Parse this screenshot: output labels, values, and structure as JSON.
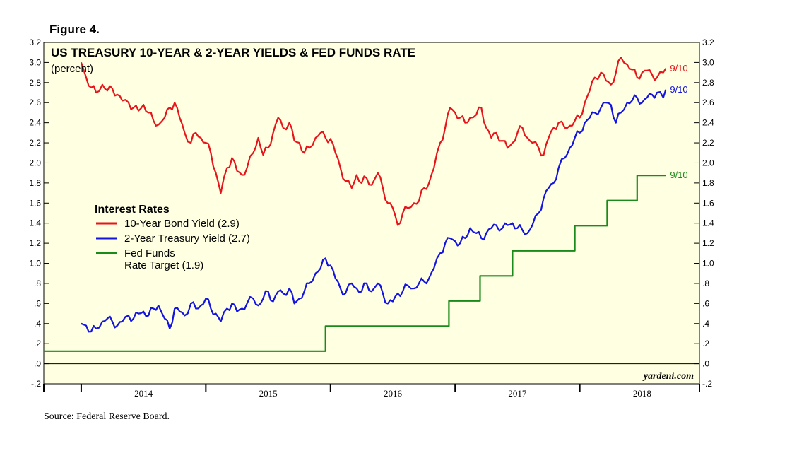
{
  "figure_label": "Figure 4.",
  "source": "Source: Federal Reserve Board.",
  "watermark": "yardeni.com",
  "chart_data": {
    "type": "line",
    "title": "US TREASURY 10-YEAR & 2-YEAR YIELDS & FED FUNDS RATE",
    "subtitle": "(percent)",
    "ylim": [
      -0.2,
      3.2
    ],
    "xlim": [
      2013.7,
      2018.96
    ],
    "y_ticks": [
      {
        "value": 3.2,
        "label": "3.2"
      },
      {
        "value": 3.0,
        "label": "3.0"
      },
      {
        "value": 2.8,
        "label": "2.8"
      },
      {
        "value": 2.6,
        "label": "2.6"
      },
      {
        "value": 2.4,
        "label": "2.4"
      },
      {
        "value": 2.2,
        "label": "2.2"
      },
      {
        "value": 2.0,
        "label": "2.0"
      },
      {
        "value": 1.8,
        "label": "1.8"
      },
      {
        "value": 1.6,
        "label": "1.6"
      },
      {
        "value": 1.4,
        "label": "1.4"
      },
      {
        "value": 1.2,
        "label": "1.2"
      },
      {
        "value": 1.0,
        "label": "1.0"
      },
      {
        "value": 0.8,
        "label": ".8"
      },
      {
        "value": 0.6,
        "label": ".6"
      },
      {
        "value": 0.4,
        "label": ".4"
      },
      {
        "value": 0.2,
        "label": ".2"
      },
      {
        "value": 0.0,
        "label": ".0"
      },
      {
        "value": -0.2,
        "label": "-.2"
      }
    ],
    "x_ticks": [
      2014.0,
      2015.0,
      2016.0,
      2017.0,
      2018.0
    ],
    "x_tick_labels": [
      {
        "value": 2014.5,
        "label": "2014"
      },
      {
        "value": 2015.5,
        "label": "2015"
      },
      {
        "value": 2016.5,
        "label": "2016"
      },
      {
        "value": 2017.5,
        "label": "2017"
      },
      {
        "value": 2018.5,
        "label": "2018"
      }
    ],
    "legend": {
      "heading": "Interest Rates",
      "entries": [
        "10-Year Bond Yield (2.9)",
        "2-Year Treasury Yield (2.7)",
        "Fed Funds",
        "Rate Target (1.9)"
      ]
    },
    "series": [
      {
        "name": "10-Year Bond Yield",
        "color": "#e8141b",
        "end_label": "9/10",
        "x": [
          2014.0,
          2014.04,
          2014.08,
          2014.12,
          2014.17,
          2014.21,
          2014.25,
          2014.29,
          2014.33,
          2014.38,
          2014.42,
          2014.46,
          2014.5,
          2014.54,
          2014.58,
          2014.62,
          2014.67,
          2014.71,
          2014.75,
          2014.79,
          2014.83,
          2014.88,
          2014.92,
          2014.96,
          2015.0,
          2015.04,
          2015.08,
          2015.12,
          2015.17,
          2015.21,
          2015.25,
          2015.29,
          2015.33,
          2015.38,
          2015.42,
          2015.46,
          2015.5,
          2015.54,
          2015.58,
          2015.62,
          2015.67,
          2015.71,
          2015.75,
          2015.79,
          2015.83,
          2015.88,
          2015.92,
          2015.96,
          2016.0,
          2016.04,
          2016.08,
          2016.12,
          2016.17,
          2016.21,
          2016.25,
          2016.29,
          2016.33,
          2016.38,
          2016.42,
          2016.46,
          2016.5,
          2016.54,
          2016.58,
          2016.62,
          2016.67,
          2016.71,
          2016.75,
          2016.79,
          2016.83,
          2016.88,
          2016.92,
          2016.96,
          2017.0,
          2017.04,
          2017.08,
          2017.12,
          2017.17,
          2017.21,
          2017.25,
          2017.29,
          2017.33,
          2017.38,
          2017.42,
          2017.46,
          2017.5,
          2017.54,
          2017.58,
          2017.62,
          2017.67,
          2017.71,
          2017.75,
          2017.79,
          2017.83,
          2017.88,
          2017.92,
          2017.96,
          2018.0,
          2018.04,
          2018.08,
          2018.12,
          2018.17,
          2018.21,
          2018.25,
          2018.29,
          2018.33,
          2018.38,
          2018.42,
          2018.46,
          2018.5,
          2018.54,
          2018.58,
          2018.62,
          2018.67,
          2018.69
        ],
        "values": [
          3.0,
          2.85,
          2.75,
          2.7,
          2.78,
          2.72,
          2.74,
          2.68,
          2.62,
          2.6,
          2.55,
          2.52,
          2.58,
          2.5,
          2.42,
          2.38,
          2.45,
          2.55,
          2.6,
          2.45,
          2.3,
          2.2,
          2.3,
          2.25,
          2.2,
          2.1,
          1.9,
          1.7,
          1.95,
          2.05,
          1.92,
          1.88,
          1.95,
          2.1,
          2.25,
          2.08,
          2.15,
          2.3,
          2.45,
          2.35,
          2.4,
          2.22,
          2.2,
          2.1,
          2.15,
          2.25,
          2.3,
          2.25,
          2.24,
          2.1,
          1.95,
          1.82,
          1.75,
          1.88,
          1.8,
          1.85,
          1.78,
          1.9,
          1.75,
          1.6,
          1.55,
          1.38,
          1.5,
          1.55,
          1.6,
          1.62,
          1.75,
          1.8,
          1.95,
          2.2,
          2.35,
          2.55,
          2.5,
          2.45,
          2.4,
          2.45,
          2.48,
          2.55,
          2.35,
          2.25,
          2.3,
          2.22,
          2.15,
          2.2,
          2.3,
          2.35,
          2.25,
          2.2,
          2.15,
          2.08,
          2.25,
          2.35,
          2.4,
          2.35,
          2.37,
          2.42,
          2.45,
          2.6,
          2.72,
          2.85,
          2.9,
          2.82,
          2.78,
          2.9,
          3.05,
          2.98,
          2.93,
          2.85,
          2.9,
          2.92,
          2.88,
          2.85,
          2.9,
          2.94
        ]
      },
      {
        "name": "2-Year Treasury Yield",
        "color": "#1414e0",
        "end_label": "9/10",
        "x": [
          2014.0,
          2014.04,
          2014.08,
          2014.12,
          2014.17,
          2014.21,
          2014.25,
          2014.29,
          2014.33,
          2014.38,
          2014.42,
          2014.46,
          2014.5,
          2014.54,
          2014.58,
          2014.62,
          2014.67,
          2014.71,
          2014.75,
          2014.79,
          2014.83,
          2014.88,
          2014.92,
          2014.96,
          2015.0,
          2015.04,
          2015.08,
          2015.12,
          2015.17,
          2015.21,
          2015.25,
          2015.29,
          2015.33,
          2015.38,
          2015.42,
          2015.46,
          2015.5,
          2015.54,
          2015.58,
          2015.62,
          2015.67,
          2015.71,
          2015.75,
          2015.79,
          2015.83,
          2015.88,
          2015.92,
          2015.96,
          2016.0,
          2016.04,
          2016.08,
          2016.12,
          2016.17,
          2016.21,
          2016.25,
          2016.29,
          2016.33,
          2016.38,
          2016.42,
          2016.46,
          2016.5,
          2016.54,
          2016.58,
          2016.62,
          2016.67,
          2016.71,
          2016.75,
          2016.79,
          2016.83,
          2016.88,
          2016.92,
          2016.96,
          2017.0,
          2017.04,
          2017.08,
          2017.12,
          2017.17,
          2017.21,
          2017.25,
          2017.29,
          2017.33,
          2017.38,
          2017.42,
          2017.46,
          2017.5,
          2017.54,
          2017.58,
          2017.62,
          2017.67,
          2017.71,
          2017.75,
          2017.79,
          2017.83,
          2017.88,
          2017.92,
          2017.96,
          2018.0,
          2018.04,
          2018.08,
          2018.12,
          2018.17,
          2018.21,
          2018.25,
          2018.29,
          2018.33,
          2018.38,
          2018.42,
          2018.46,
          2018.5,
          2018.54,
          2018.58,
          2018.62,
          2018.67,
          2018.69
        ],
        "values": [
          0.4,
          0.38,
          0.32,
          0.35,
          0.42,
          0.45,
          0.42,
          0.38,
          0.42,
          0.48,
          0.45,
          0.5,
          0.52,
          0.48,
          0.55,
          0.58,
          0.45,
          0.35,
          0.55,
          0.52,
          0.48,
          0.6,
          0.55,
          0.58,
          0.65,
          0.55,
          0.5,
          0.42,
          0.55,
          0.6,
          0.52,
          0.55,
          0.6,
          0.65,
          0.58,
          0.65,
          0.72,
          0.62,
          0.72,
          0.7,
          0.75,
          0.6,
          0.65,
          0.72,
          0.8,
          0.9,
          0.95,
          1.05,
          0.98,
          0.85,
          0.75,
          0.7,
          0.8,
          0.75,
          0.72,
          0.8,
          0.72,
          0.8,
          0.7,
          0.6,
          0.62,
          0.7,
          0.72,
          0.78,
          0.75,
          0.8,
          0.82,
          0.85,
          0.95,
          1.1,
          1.2,
          1.25,
          1.22,
          1.2,
          1.25,
          1.35,
          1.3,
          1.25,
          1.3,
          1.35,
          1.38,
          1.35,
          1.38,
          1.4,
          1.35,
          1.33,
          1.3,
          1.38,
          1.5,
          1.65,
          1.75,
          1.8,
          1.95,
          2.05,
          2.15,
          2.25,
          2.3,
          2.4,
          2.45,
          2.5,
          2.55,
          2.6,
          2.58,
          2.4,
          2.5,
          2.6,
          2.62,
          2.65,
          2.6,
          2.65,
          2.68,
          2.7,
          2.65,
          2.73
        ]
      },
      {
        "name": "Fed Funds Rate Target",
        "color": "#1a8a1a",
        "end_label": "9/10",
        "step": true,
        "x": [
          2013.7,
          2015.96,
          2015.96,
          2016.95,
          2016.95,
          2017.2,
          2017.2,
          2017.46,
          2017.46,
          2017.96,
          2017.96,
          2018.22,
          2018.22,
          2018.46,
          2018.46,
          2018.69
        ],
        "values": [
          0.125,
          0.125,
          0.375,
          0.375,
          0.625,
          0.625,
          0.875,
          0.875,
          1.125,
          1.125,
          1.375,
          1.375,
          1.625,
          1.625,
          1.875,
          1.875
        ]
      }
    ]
  }
}
